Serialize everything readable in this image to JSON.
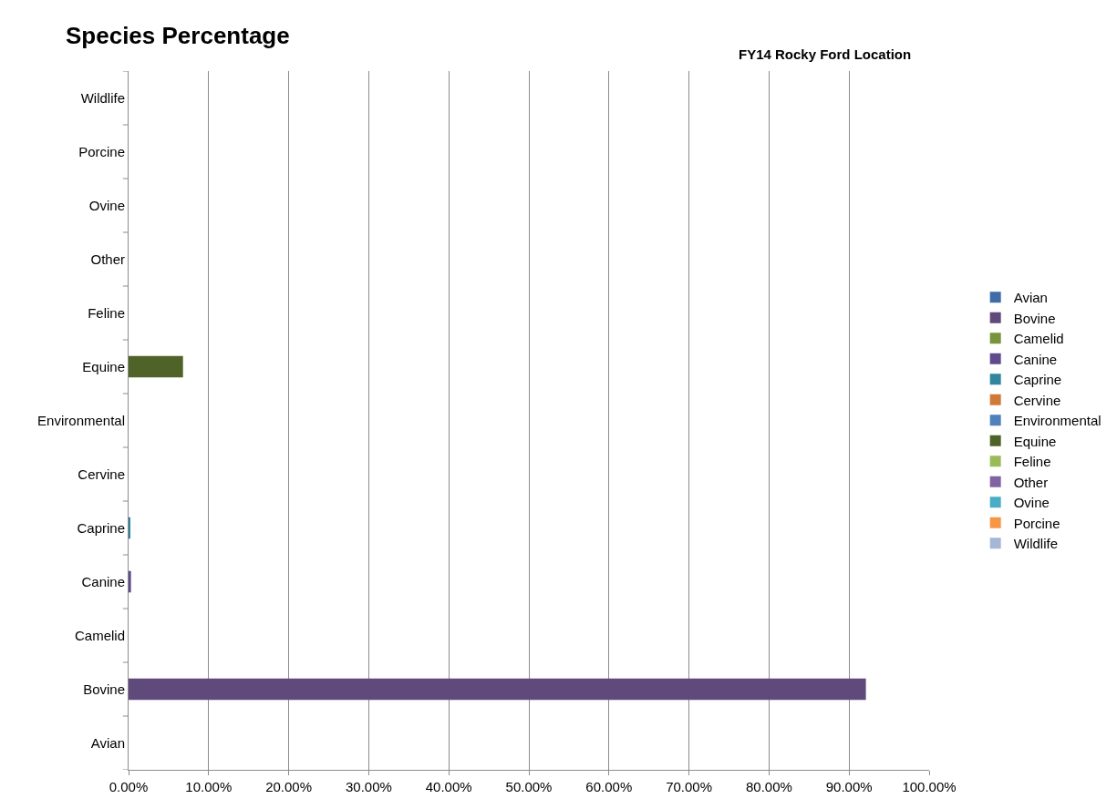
{
  "chart_data": {
    "type": "bar",
    "orientation": "horizontal",
    "title": "Species Percentage",
    "subtitle": "FY14 Rocky Ford Location",
    "categories": [
      "Wildlife",
      "Porcine",
      "Ovine",
      "Other",
      "Feline",
      "Equine",
      "Environmental",
      "Cervine",
      "Caprine",
      "Canine",
      "Camelid",
      "Bovine",
      "Avian"
    ],
    "series": [
      {
        "name": "Avian",
        "color": "#3f6ba6",
        "values": [
          null,
          null,
          null,
          null,
          null,
          null,
          null,
          null,
          null,
          null,
          null,
          null,
          0
        ]
      },
      {
        "name": "Bovine",
        "color": "#604a7b",
        "values": [
          null,
          null,
          null,
          null,
          null,
          null,
          null,
          null,
          null,
          null,
          null,
          92.1,
          null
        ]
      },
      {
        "name": "Camelid",
        "color": "#77933c",
        "values": [
          null,
          null,
          null,
          null,
          null,
          null,
          null,
          null,
          null,
          null,
          0,
          null,
          null
        ]
      },
      {
        "name": "Canine",
        "color": "#5f4b8b",
        "values": [
          null,
          null,
          null,
          null,
          null,
          null,
          null,
          null,
          null,
          0.3,
          null,
          null,
          null
        ]
      },
      {
        "name": "Caprine",
        "color": "#31859c",
        "values": [
          null,
          null,
          null,
          null,
          null,
          null,
          null,
          null,
          0.2,
          null,
          null,
          null,
          null
        ]
      },
      {
        "name": "Cervine",
        "color": "#d07a3a",
        "values": [
          null,
          null,
          null,
          null,
          null,
          null,
          null,
          0,
          null,
          null,
          null,
          null,
          null
        ]
      },
      {
        "name": "Environmental",
        "color": "#4f81bd",
        "values": [
          null,
          null,
          null,
          null,
          null,
          null,
          0,
          null,
          null,
          null,
          null,
          null,
          null
        ]
      },
      {
        "name": "Equine",
        "color": "#4f6228",
        "values": [
          null,
          null,
          null,
          null,
          null,
          6.8,
          null,
          null,
          null,
          null,
          null,
          null,
          null
        ]
      },
      {
        "name": "Feline",
        "color": "#9bbb59",
        "values": [
          null,
          null,
          null,
          null,
          0,
          null,
          null,
          null,
          null,
          null,
          null,
          null,
          null
        ]
      },
      {
        "name": "Other",
        "color": "#8064a2",
        "values": [
          null,
          null,
          null,
          0,
          null,
          null,
          null,
          null,
          null,
          null,
          null,
          null,
          null
        ]
      },
      {
        "name": "Ovine",
        "color": "#4bacc6",
        "values": [
          null,
          null,
          0,
          null,
          null,
          null,
          null,
          null,
          null,
          null,
          null,
          null,
          null
        ]
      },
      {
        "name": "Porcine",
        "color": "#f79646",
        "values": [
          null,
          0,
          null,
          null,
          null,
          null,
          null,
          null,
          null,
          null,
          null,
          null,
          null
        ]
      },
      {
        "name": "Wildlife",
        "color": "#a5b6d6",
        "values": [
          0,
          null,
          null,
          null,
          null,
          null,
          null,
          null,
          null,
          null,
          null,
          null,
          null
        ]
      }
    ],
    "xlim": [
      0,
      100
    ],
    "xticks": [
      {
        "value": 0,
        "label": "0.00%"
      },
      {
        "value": 10,
        "label": "10.00%"
      },
      {
        "value": 20,
        "label": "20.00%"
      },
      {
        "value": 30,
        "label": "30.00%"
      },
      {
        "value": 40,
        "label": "40.00%"
      },
      {
        "value": 50,
        "label": "50.00%"
      },
      {
        "value": 60,
        "label": "60.00%"
      },
      {
        "value": 70,
        "label": "70.00%"
      },
      {
        "value": 80,
        "label": "80.00%"
      },
      {
        "value": 90,
        "label": "90.00%"
      },
      {
        "value": 100,
        "label": "100.00%"
      }
    ],
    "grid": "x",
    "legend": "right"
  }
}
